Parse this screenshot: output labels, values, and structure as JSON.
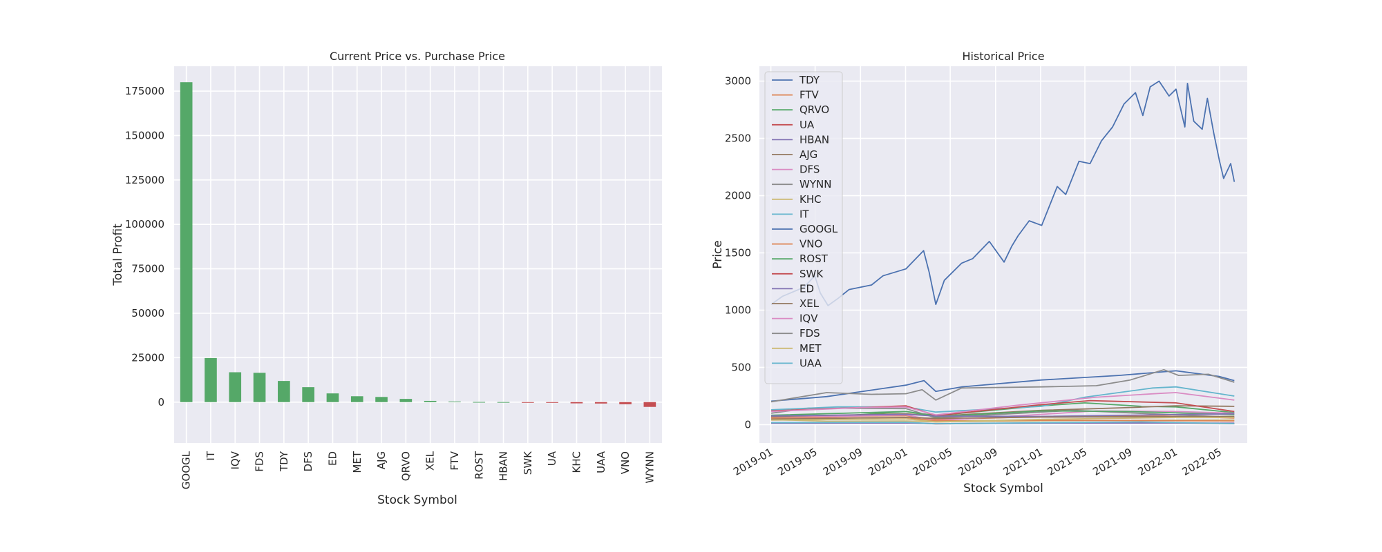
{
  "chart_data": [
    {
      "type": "bar",
      "title": "Current Price vs. Purchase Price",
      "xlabel": "Stock Symbol",
      "ylabel": "Total Profit",
      "categories": [
        "GOOGL",
        "IT",
        "IQV",
        "FDS",
        "TDY",
        "DFS",
        "ED",
        "MET",
        "AJG",
        "QRVO",
        "XEL",
        "FTV",
        "ROST",
        "HBAN",
        "SWK",
        "UA",
        "KHC",
        "UAA",
        "VNO",
        "WYNN"
      ],
      "values": [
        180000,
        24800,
        16800,
        16500,
        11900,
        8400,
        4900,
        3300,
        2900,
        1800,
        700,
        300,
        100,
        50,
        -80,
        -400,
        -700,
        -800,
        -1200,
        -2700
      ],
      "yticks": [
        0,
        25000,
        50000,
        75000,
        100000,
        125000,
        150000,
        175000
      ],
      "ylim": [
        -23000,
        189000
      ],
      "positive_color": "#55a868",
      "negative_color": "#c44e52",
      "background": "#eaeaf2",
      "grid": true
    },
    {
      "type": "line",
      "title": "Historical Price",
      "xlabel": "Stock Symbol",
      "ylabel": "Price",
      "xlim": [
        "2018-12-01",
        "2022-07-15"
      ],
      "ylim": [
        -160,
        3130
      ],
      "xticks": [
        "2019-01",
        "2019-05",
        "2019-09",
        "2020-01",
        "2020-05",
        "2020-09",
        "2021-01",
        "2021-05",
        "2021-09",
        "2022-01",
        "2022-05"
      ],
      "yticks": [
        0,
        500,
        1000,
        1500,
        2000,
        2500,
        3000
      ],
      "legend_position": "upper-left",
      "background": "#eaeaf2",
      "grid": true,
      "series": [
        {
          "name": "TDY",
          "color": "#4c72b0",
          "points": [
            [
              "2019-01-02",
              205
            ],
            [
              "2019-06-01",
              245
            ],
            [
              "2020-01-02",
              345
            ],
            [
              "2020-02-20",
              385
            ],
            [
              "2020-03-23",
              290
            ],
            [
              "2020-06-01",
              330
            ],
            [
              "2021-01-04",
              390
            ],
            [
              "2021-08-01",
              430
            ],
            [
              "2022-01-03",
              470
            ],
            [
              "2022-05-01",
              420
            ],
            [
              "2022-06-10",
              385
            ]
          ]
        },
        {
          "name": "FTV",
          "color": "#dd8452",
          "points": [
            [
              "2019-01-02",
              70
            ],
            [
              "2020-01-02",
              78
            ],
            [
              "2020-03-23",
              45
            ],
            [
              "2021-01-04",
              70
            ],
            [
              "2021-12-01",
              75
            ],
            [
              "2022-06-10",
              58
            ]
          ]
        },
        {
          "name": "QRVO",
          "color": "#55a868",
          "points": [
            [
              "2019-01-02",
              62
            ],
            [
              "2019-06-01",
              68
            ],
            [
              "2020-01-02",
              115
            ],
            [
              "2020-03-23",
              80
            ],
            [
              "2021-01-04",
              165
            ],
            [
              "2021-05-01",
              190
            ],
            [
              "2021-10-01",
              160
            ],
            [
              "2022-01-03",
              155
            ],
            [
              "2022-06-10",
              105
            ]
          ]
        },
        {
          "name": "UA",
          "color": "#c44e52",
          "points": [
            [
              "2019-01-02",
              16
            ],
            [
              "2020-01-02",
              18
            ],
            [
              "2020-03-23",
              7
            ],
            [
              "2021-01-04",
              15
            ],
            [
              "2021-09-01",
              20
            ],
            [
              "2022-06-10",
              8
            ]
          ]
        },
        {
          "name": "HBAN",
          "color": "#8172b3",
          "points": [
            [
              "2019-01-02",
              12
            ],
            [
              "2020-01-02",
              15
            ],
            [
              "2020-03-23",
              8
            ],
            [
              "2021-01-04",
              13
            ],
            [
              "2022-01-03",
              15
            ],
            [
              "2022-06-10",
              13
            ]
          ]
        },
        {
          "name": "AJG",
          "color": "#937860",
          "points": [
            [
              "2019-01-02",
              72
            ],
            [
              "2020-01-02",
              95
            ],
            [
              "2020-03-23",
              75
            ],
            [
              "2021-01-04",
              125
            ],
            [
              "2021-09-01",
              150
            ],
            [
              "2022-01-03",
              165
            ],
            [
              "2022-06-10",
              160
            ]
          ]
        },
        {
          "name": "DFS",
          "color": "#da8bc3",
          "points": [
            [
              "2019-01-02",
              60
            ],
            [
              "2020-01-02",
              85
            ],
            [
              "2020-03-23",
              35
            ],
            [
              "2021-01-04",
              90
            ],
            [
              "2021-06-01",
              120
            ],
            [
              "2022-01-03",
              115
            ],
            [
              "2022-06-10",
              100
            ]
          ]
        },
        {
          "name": "WYNN",
          "color": "#8c8c8c",
          "points": [
            [
              "2019-01-02",
              100
            ],
            [
              "2019-04-15",
              145
            ],
            [
              "2020-01-02",
              140
            ],
            [
              "2020-03-23",
              60
            ],
            [
              "2021-01-04",
              110
            ],
            [
              "2021-04-01",
              125
            ],
            [
              "2022-01-03",
              85
            ],
            [
              "2022-06-10",
              65
            ]
          ]
        },
        {
          "name": "KHC",
          "color": "#ccb974",
          "points": [
            [
              "2019-01-02",
              44
            ],
            [
              "2019-06-01",
              30
            ],
            [
              "2020-01-02",
              32
            ],
            [
              "2020-03-23",
              24
            ],
            [
              "2021-01-04",
              34
            ],
            [
              "2022-06-10",
              40
            ]
          ]
        },
        {
          "name": "IT",
          "color": "#64b5cd",
          "points": [
            [
              "2019-01-02",
              130
            ],
            [
              "2019-07-01",
              155
            ],
            [
              "2020-01-02",
              155
            ],
            [
              "2020-03-23",
              110
            ],
            [
              "2021-01-04",
              160
            ],
            [
              "2021-05-01",
              240
            ],
            [
              "2021-11-01",
              320
            ],
            [
              "2022-01-03",
              330
            ],
            [
              "2022-06-10",
              250
            ]
          ]
        },
        {
          "name": "GOOGL",
          "color": "#4c72b0",
          "points": [
            [
              "2019-01-02",
              1050
            ],
            [
              "2019-02-01",
              1120
            ],
            [
              "2019-04-01",
              1200
            ],
            [
              "2019-04-30",
              1300
            ],
            [
              "2019-05-15",
              1150
            ],
            [
              "2019-06-05",
              1040
            ],
            [
              "2019-07-01",
              1100
            ],
            [
              "2019-08-01",
              1180
            ],
            [
              "2019-10-01",
              1220
            ],
            [
              "2019-11-01",
              1300
            ],
            [
              "2020-01-02",
              1360
            ],
            [
              "2020-02-19",
              1520
            ],
            [
              "2020-03-05",
              1330
            ],
            [
              "2020-03-23",
              1050
            ],
            [
              "2020-04-15",
              1260
            ],
            [
              "2020-06-01",
              1410
            ],
            [
              "2020-07-01",
              1450
            ],
            [
              "2020-08-15",
              1600
            ],
            [
              "2020-09-24",
              1420
            ],
            [
              "2020-10-15",
              1560
            ],
            [
              "2020-11-01",
              1650
            ],
            [
              "2020-12-01",
              1780
            ],
            [
              "2021-01-04",
              1740
            ],
            [
              "2021-02-15",
              2080
            ],
            [
              "2021-03-10",
              2010
            ],
            [
              "2021-04-15",
              2300
            ],
            [
              "2021-05-15",
              2280
            ],
            [
              "2021-06-15",
              2480
            ],
            [
              "2021-07-15",
              2600
            ],
            [
              "2021-08-15",
              2800
            ],
            [
              "2021-09-15",
              2900
            ],
            [
              "2021-10-05",
              2700
            ],
            [
              "2021-10-25",
              2950
            ],
            [
              "2021-11-18",
              3000
            ],
            [
              "2021-12-15",
              2870
            ],
            [
              "2022-01-03",
              2930
            ],
            [
              "2022-01-27",
              2600
            ],
            [
              "2022-02-03",
              2980
            ],
            [
              "2022-02-20",
              2650
            ],
            [
              "2022-03-15",
              2580
            ],
            [
              "2022-03-29",
              2850
            ],
            [
              "2022-04-15",
              2550
            ],
            [
              "2022-05-01",
              2300
            ],
            [
              "2022-05-12",
              2150
            ],
            [
              "2022-05-31",
              2280
            ],
            [
              "2022-06-10",
              2120
            ]
          ]
        },
        {
          "name": "VNO",
          "color": "#dd8452",
          "points": [
            [
              "2019-01-02",
              58
            ],
            [
              "2020-01-02",
              62
            ],
            [
              "2020-03-23",
              33
            ],
            [
              "2021-01-04",
              38
            ],
            [
              "2022-06-10",
              33
            ]
          ]
        },
        {
          "name": "ROST",
          "color": "#55a868",
          "points": [
            [
              "2019-01-02",
              82
            ],
            [
              "2020-01-02",
              115
            ],
            [
              "2020-03-23",
              70
            ],
            [
              "2021-01-04",
              120
            ],
            [
              "2021-09-01",
              115
            ],
            [
              "2022-06-10",
              88
            ]
          ]
        },
        {
          "name": "SWK",
          "color": "#c44e52",
          "points": [
            [
              "2019-01-02",
              120
            ],
            [
              "2020-01-02",
              165
            ],
            [
              "2020-03-23",
              80
            ],
            [
              "2021-01-04",
              175
            ],
            [
              "2021-05-15",
              210
            ],
            [
              "2022-01-03",
              190
            ],
            [
              "2022-06-10",
              115
            ]
          ]
        },
        {
          "name": "ED",
          "color": "#8172b3",
          "points": [
            [
              "2019-01-02",
              76
            ],
            [
              "2020-01-02",
              90
            ],
            [
              "2020-03-23",
              75
            ],
            [
              "2021-01-04",
              72
            ],
            [
              "2022-06-10",
              95
            ]
          ]
        },
        {
          "name": "XEL",
          "color": "#937860",
          "points": [
            [
              "2019-01-02",
              48
            ],
            [
              "2020-01-02",
              63
            ],
            [
              "2020-03-23",
              55
            ],
            [
              "2021-01-04",
              66
            ],
            [
              "2022-06-10",
              72
            ]
          ]
        },
        {
          "name": "IQV",
          "color": "#da8bc3",
          "points": [
            [
              "2019-01-02",
              115
            ],
            [
              "2019-09-01",
              150
            ],
            [
              "2020-01-02",
              155
            ],
            [
              "2020-03-23",
              85
            ],
            [
              "2020-11-01",
              170
            ],
            [
              "2021-06-01",
              240
            ],
            [
              "2021-12-01",
              275
            ],
            [
              "2022-01-03",
              280
            ],
            [
              "2022-06-10",
              215
            ]
          ]
        },
        {
          "name": "FDS",
          "color": "#8c8c8c",
          "points": [
            [
              "2019-01-02",
              200
            ],
            [
              "2019-06-01",
              280
            ],
            [
              "2019-10-01",
              265
            ],
            [
              "2020-01-02",
              270
            ],
            [
              "2020-02-15",
              305
            ],
            [
              "2020-03-23",
              215
            ],
            [
              "2020-06-01",
              320
            ],
            [
              "2021-01-04",
              330
            ],
            [
              "2021-06-01",
              340
            ],
            [
              "2021-09-01",
              390
            ],
            [
              "2021-12-01",
              480
            ],
            [
              "2022-01-10",
              430
            ],
            [
              "2022-04-01",
              440
            ],
            [
              "2022-06-10",
              370
            ]
          ]
        },
        {
          "name": "MET",
          "color": "#ccb974",
          "points": [
            [
              "2019-01-02",
              40
            ],
            [
              "2020-01-02",
              50
            ],
            [
              "2020-03-23",
              25
            ],
            [
              "2021-01-04",
              46
            ],
            [
              "2022-01-03",
              63
            ],
            [
              "2022-06-10",
              63
            ]
          ]
        },
        {
          "name": "UAA",
          "color": "#64b5cd",
          "points": [
            [
              "2019-01-02",
              18
            ],
            [
              "2020-01-02",
              21
            ],
            [
              "2020-03-23",
              8
            ],
            [
              "2021-01-04",
              17
            ],
            [
              "2021-10-01",
              24
            ],
            [
              "2022-06-10",
              9
            ]
          ]
        }
      ]
    }
  ]
}
